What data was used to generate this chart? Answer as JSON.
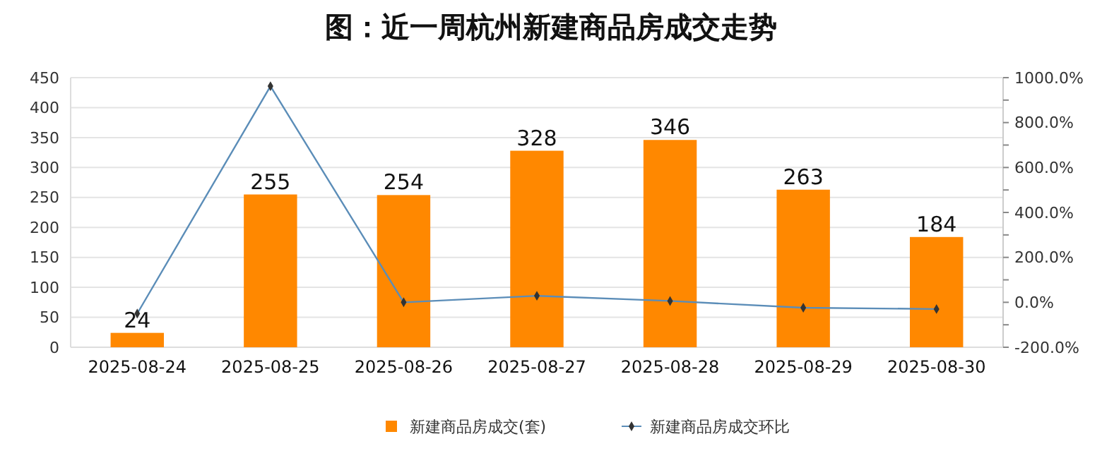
{
  "chart_data": {
    "type": "bar",
    "title": "图：近一周杭州新建商品房成交走势",
    "categories": [
      "2025-08-24",
      "2025-08-25",
      "2025-08-26",
      "2025-08-27",
      "2025-08-28",
      "2025-08-29",
      "2025-08-30"
    ],
    "series": [
      {
        "name": "新建商品房成交(套)",
        "color": "#ff8800",
        "values": [
          24,
          255,
          254,
          328,
          346,
          263,
          184
        ],
        "data_labels": true
      },
      {
        "name": "新建商品房成交环比",
        "type": "line",
        "axis": "y2",
        "color": "#5b8db8",
        "marker": "diamond",
        "values": [
          -50,
          962,
          0,
          29,
          6,
          -24,
          -30
        ]
      }
    ],
    "ylim": [
      0,
      450
    ],
    "yticks": [
      0,
      50,
      100,
      150,
      200,
      250,
      300,
      350,
      400,
      450
    ],
    "y2lim": [
      -200,
      1000
    ],
    "y2ticks": [
      {
        "value": -200,
        "label": "-200.0%"
      },
      {
        "value": -100,
        "label": null
      },
      {
        "value": 0,
        "label": "0.0%"
      },
      {
        "value": 100,
        "label": null
      },
      {
        "value": 200,
        "label": "200.0%"
      },
      {
        "value": 300,
        "label": null
      },
      {
        "value": 400,
        "label": "400.0%"
      },
      {
        "value": 500,
        "label": null
      },
      {
        "value": 600,
        "label": "600.0%"
      },
      {
        "value": 700,
        "label": null
      },
      {
        "value": 800,
        "label": "800.0%"
      },
      {
        "value": 900,
        "label": null
      },
      {
        "value": 1000,
        "label": "1000.0%"
      }
    ],
    "grid": "y",
    "legend": "bottom"
  }
}
